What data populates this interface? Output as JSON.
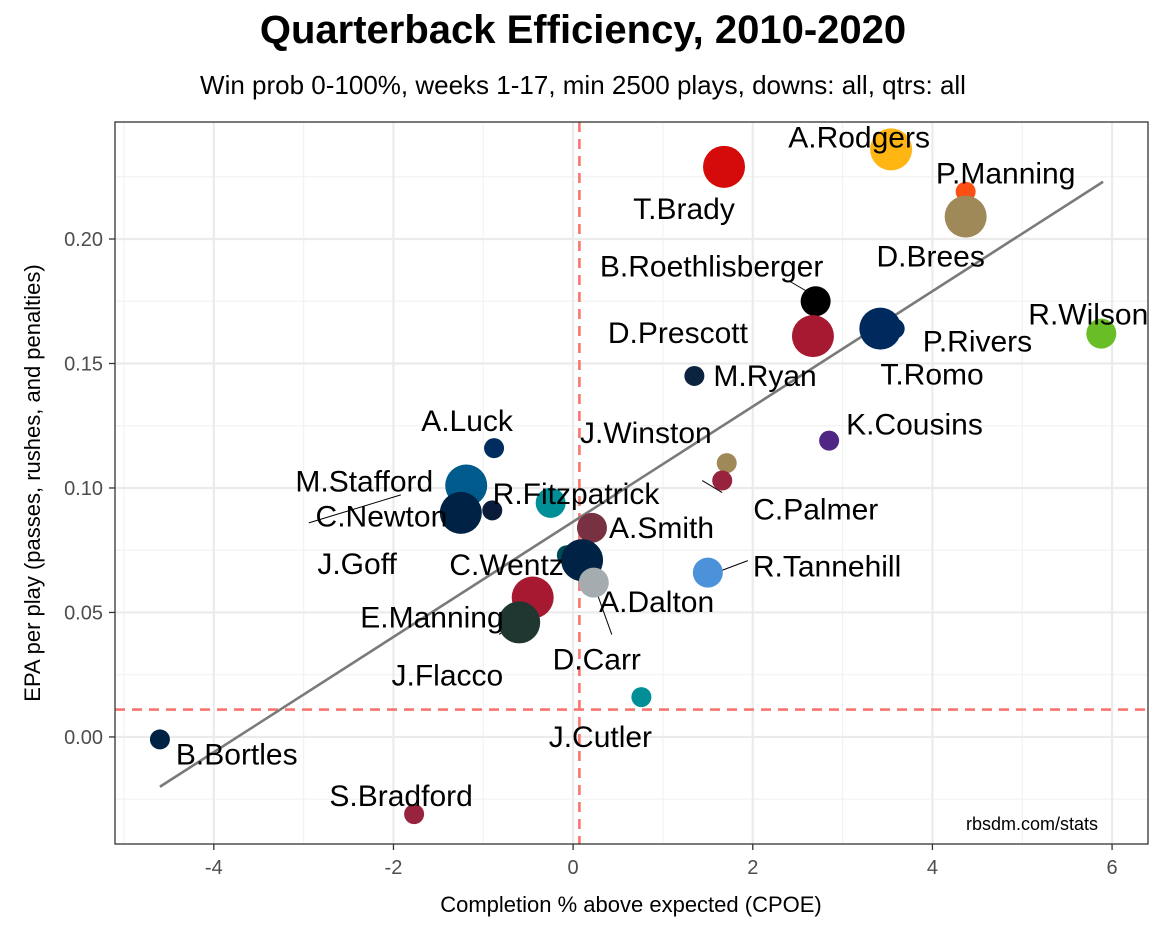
{
  "chart_data": {
    "type": "scatter",
    "title": "Quarterback Efficiency, 2010-2020",
    "subtitle": "Win prob 0-100%, weeks 1-17, min 2500 plays, downs: all, qtrs: all",
    "xlabel": "Completion % above expected (CPOE)",
    "ylabel": "EPA per play (passes, rushes, and penalties)",
    "caption": "rbsdm.com/stats",
    "xlim": [
      -5.1,
      6.4
    ],
    "ylim": [
      -0.043,
      0.247
    ],
    "xticks": [
      -4,
      -2,
      0,
      2,
      4,
      6
    ],
    "xtick_labels": [
      "-4",
      "-2",
      "0",
      "2",
      "4",
      "6"
    ],
    "yticks": [
      0.0,
      0.05,
      0.1,
      0.15,
      0.2
    ],
    "ytick_labels": [
      "0.00",
      "0.05",
      "0.10",
      "0.15",
      "0.20"
    ],
    "grid": true,
    "reference_lines": {
      "vertical_x": 0.07,
      "horizontal_y": 0.011,
      "color": "#f8766d"
    },
    "trend_line": {
      "x": [
        -4.6,
        5.9
      ],
      "y": [
        -0.02,
        0.223
      ],
      "color": "#7a7a7a"
    },
    "points": [
      {
        "name": "A.Rodgers",
        "x": 3.54,
        "y": 0.236,
        "size": "large",
        "color": "#ffb612"
      },
      {
        "name": "T.Brady",
        "x": 1.68,
        "y": 0.229,
        "size": "large",
        "color": "#d50a0a"
      },
      {
        "name": "P.Manning",
        "x": 4.37,
        "y": 0.219,
        "size": "small",
        "color": "#fb4f14"
      },
      {
        "name": "D.Brees",
        "x": 4.37,
        "y": 0.209,
        "size": "large",
        "color": "#9f8958"
      },
      {
        "name": "B.Roethlisberger",
        "x": 2.7,
        "y": 0.175,
        "size": "medium",
        "color": "#000000"
      },
      {
        "name": "P.Rivers",
        "x": 3.58,
        "y": 0.164,
        "size": "small",
        "color": "#002a5e"
      },
      {
        "name": "T.Romo",
        "x": 3.42,
        "y": 0.164,
        "size": "large",
        "color": "#002a5e"
      },
      {
        "name": "D.Prescott",
        "x": 2.67,
        "y": 0.161,
        "size": "large",
        "color": "#a71930"
      },
      {
        "name": "R.Wilson",
        "x": 5.88,
        "y": 0.162,
        "size": "medium",
        "color": "#69be28"
      },
      {
        "name": "M.Ryan",
        "x": 1.35,
        "y": 0.145,
        "size": "small",
        "color": "#0c2340"
      },
      {
        "name": "K.Cousins",
        "x": 2.85,
        "y": 0.119,
        "size": "small",
        "color": "#4f2683"
      },
      {
        "name": "A.Luck",
        "x": -0.88,
        "y": 0.116,
        "size": "small",
        "color": "#002c5f"
      },
      {
        "name": "J.Winston",
        "x": 1.71,
        "y": 0.11,
        "size": "small",
        "color": "#9f8958"
      },
      {
        "name": "C.Palmer",
        "x": 1.66,
        "y": 0.103,
        "size": "small",
        "color": "#97233f"
      },
      {
        "name": "M.Stafford",
        "x": -1.19,
        "y": 0.101,
        "size": "large",
        "color": "#005a8b"
      },
      {
        "name": "R.Fitzpatrick",
        "x": -0.25,
        "y": 0.094,
        "size": "medium",
        "color": "#008e97"
      },
      {
        "name": "C.Newton",
        "x": -0.9,
        "y": 0.091,
        "size": "small",
        "color": "#0b1c3a"
      },
      {
        "name": "J.Goff",
        "x": -1.25,
        "y": 0.09,
        "size": "large",
        "color": "#002244"
      },
      {
        "name": "A.Smith",
        "x": 0.21,
        "y": 0.084,
        "size": "medium",
        "color": "#773141"
      },
      {
        "name": "C.Wentz",
        "x": -0.07,
        "y": 0.073,
        "size": "small",
        "color": "#004c54"
      },
      {
        "name": "A.Dalton",
        "x": 0.1,
        "y": 0.071,
        "size": "large",
        "color": "#002244"
      },
      {
        "name": "R.Tannehill",
        "x": 1.5,
        "y": 0.066,
        "size": "medium",
        "color": "#4b92db"
      },
      {
        "name": "D.Carr",
        "x": 0.23,
        "y": 0.062,
        "size": "medium",
        "color": "#a5acaf"
      },
      {
        "name": "E.Manning",
        "x": -0.45,
        "y": 0.056,
        "size": "large",
        "color": "#a71930"
      },
      {
        "name": "J.Flacco",
        "x": -0.6,
        "y": 0.046,
        "size": "large",
        "color": "#203731"
      },
      {
        "name": "J.Cutler",
        "x": 0.76,
        "y": 0.016,
        "size": "small",
        "color": "#008e97"
      },
      {
        "name": "B.Bortles",
        "x": -4.6,
        "y": -0.001,
        "size": "small",
        "color": "#002244"
      },
      {
        "name": "S.Bradford",
        "x": -1.77,
        "y": -0.031,
        "size": "small",
        "color": "#97233f"
      }
    ],
    "labels": [
      {
        "name": "A.Rodgers",
        "anchor": "middle",
        "dx": 0,
        "dy": 0
      },
      {
        "name": "T.Brady",
        "anchor": "middle",
        "dx": 0,
        "dy": 0
      },
      {
        "name": "P.Manning",
        "anchor": "middle",
        "dx": 0,
        "dy": 0
      },
      {
        "name": "D.Brees",
        "anchor": "middle",
        "dx": 0,
        "dy": 0
      },
      {
        "name": "B.Roethlisberger",
        "anchor": "middle",
        "dx": 0,
        "dy": 0
      },
      {
        "name": "P.Rivers",
        "anchor": "start",
        "dx": 0,
        "dy": 0
      },
      {
        "name": "T.Romo",
        "anchor": "start",
        "dx": 0,
        "dy": 0
      },
      {
        "name": "D.Prescott",
        "anchor": "end",
        "dx": 0,
        "dy": 0
      },
      {
        "name": "R.Wilson",
        "anchor": "middle",
        "dx": 0,
        "dy": 0
      },
      {
        "name": "M.Ryan",
        "anchor": "start",
        "dx": 0,
        "dy": 0
      },
      {
        "name": "K.Cousins",
        "anchor": "start",
        "dx": 0,
        "dy": 0
      },
      {
        "name": "A.Luck",
        "anchor": "middle",
        "dx": 0,
        "dy": 0
      },
      {
        "name": "J.Winston",
        "anchor": "end",
        "dx": 0,
        "dy": 0
      },
      {
        "name": "C.Palmer",
        "anchor": "start",
        "dx": 0,
        "dy": 0
      },
      {
        "name": "M.Stafford",
        "anchor": "end",
        "dx": 0,
        "dy": 0
      },
      {
        "name": "R.Fitzpatrick",
        "anchor": "start",
        "dx": 0,
        "dy": 0
      },
      {
        "name": "C.Newton",
        "anchor": "end",
        "dx": 0,
        "dy": 0
      },
      {
        "name": "J.Goff",
        "anchor": "end",
        "dx": 0,
        "dy": 0
      },
      {
        "name": "A.Smith",
        "anchor": "start",
        "dx": 0,
        "dy": 0
      },
      {
        "name": "C.Wentz",
        "anchor": "end",
        "dx": 0,
        "dy": 0
      },
      {
        "name": "A.Dalton",
        "anchor": "start",
        "dx": 0,
        "dy": 0
      },
      {
        "name": "R.Tannehill",
        "anchor": "start",
        "dx": 0,
        "dy": 0
      },
      {
        "name": "D.Carr",
        "anchor": "middle",
        "dx": 0,
        "dy": 0
      },
      {
        "name": "E.Manning",
        "anchor": "end",
        "dx": 0,
        "dy": 0
      },
      {
        "name": "J.Flacco",
        "anchor": "end",
        "dx": 0,
        "dy": 0
      },
      {
        "name": "J.Cutler",
        "anchor": "middle",
        "dx": 0,
        "dy": 0
      },
      {
        "name": "B.Bortles",
        "anchor": "start",
        "dx": 0,
        "dy": 0
      },
      {
        "name": "S.Bradford",
        "anchor": "middle",
        "dx": 0,
        "dy": 0
      }
    ]
  }
}
